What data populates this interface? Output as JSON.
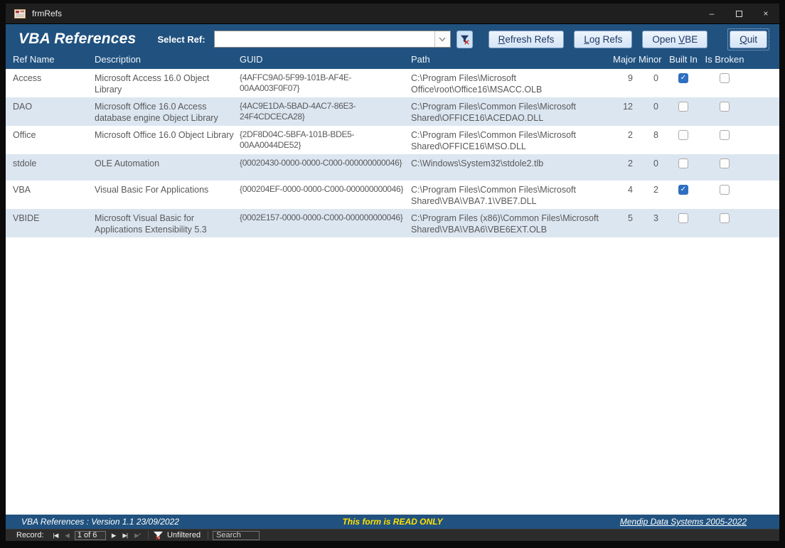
{
  "window": {
    "title": "frmRefs",
    "controls": {
      "minimize": "–",
      "close": "×"
    }
  },
  "header": {
    "title": "VBA References",
    "select_ref_label": "Select Ref:",
    "combo_value": "",
    "buttons": [
      {
        "name": "refresh-refs-button",
        "label_pre": "",
        "label_key": "R",
        "label_post": "efresh Refs",
        "is_default": false
      },
      {
        "name": "log-refs-button",
        "label_pre": "",
        "label_key": "L",
        "label_post": "og Refs",
        "is_default": false
      },
      {
        "name": "open-vbe-button",
        "label_pre": "Open ",
        "label_key": "V",
        "label_post": "BE",
        "is_default": false
      },
      {
        "name": "quit-button",
        "label_pre": "",
        "label_key": "Q",
        "label_post": "uit",
        "is_default": true
      }
    ]
  },
  "table": {
    "columns": [
      "Ref Name",
      "Description",
      "GUID",
      "Path",
      "Major",
      "Minor",
      "Built In",
      "Is Broken"
    ],
    "rows": [
      {
        "name": "Access",
        "description": "Microsoft Access 16.0 Object Library",
        "guid": "{4AFFC9A0-5F99-101B-AF4E-00AA003F0F07}",
        "path": "C:\\Program Files\\Microsoft Office\\root\\Office16\\MSACC.OLB",
        "major": "9",
        "minor": "0",
        "built_in": true,
        "is_broken": false
      },
      {
        "name": "DAO",
        "description": "Microsoft Office 16.0 Access database engine Object Library",
        "guid": "{4AC9E1DA-5BAD-4AC7-86E3-24F4CDCECA28}",
        "path": "C:\\Program Files\\Common Files\\Microsoft Shared\\OFFICE16\\ACEDAO.DLL",
        "major": "12",
        "minor": "0",
        "built_in": false,
        "is_broken": false
      },
      {
        "name": "Office",
        "description": "Microsoft Office 16.0 Object Library",
        "guid": "{2DF8D04C-5BFA-101B-BDE5-00AA0044DE52}",
        "path": "C:\\Program Files\\Common Files\\Microsoft Shared\\OFFICE16\\MSO.DLL",
        "major": "2",
        "minor": "8",
        "built_in": false,
        "is_broken": false
      },
      {
        "name": "stdole",
        "description": "OLE Automation",
        "guid": "{00020430-0000-0000-C000-000000000046}",
        "path": "C:\\Windows\\System32\\stdole2.tlb",
        "major": "2",
        "minor": "0",
        "built_in": false,
        "is_broken": false
      },
      {
        "name": "VBA",
        "description": "Visual Basic For Applications",
        "guid": "{000204EF-0000-0000-C000-000000000046}",
        "path": "C:\\Program Files\\Common Files\\Microsoft Shared\\VBA\\VBA7.1\\VBE7.DLL",
        "major": "4",
        "minor": "2",
        "built_in": true,
        "is_broken": false
      },
      {
        "name": "VBIDE",
        "description": "Microsoft Visual Basic for Applications Extensibility 5.3",
        "guid": "{0002E157-0000-0000-C000-000000000046}",
        "path": "C:\\Program Files (x86)\\Common Files\\Microsoft Shared\\VBA\\VBA6\\VBE6EXT.OLB",
        "major": "5",
        "minor": "3",
        "built_in": false,
        "is_broken": false
      }
    ]
  },
  "footer": {
    "version_text": "VBA References :  Version 1.1  23/09/2022",
    "readonly_text": "This form is READ ONLY",
    "credit_text": "Mendip Data Systems 2005-2022"
  },
  "record_nav": {
    "label": "Record:",
    "position": "1 of 6",
    "filter_state": "Unfiltered",
    "search_placeholder": "Search",
    "nav_glyphs": {
      "first": "|◀",
      "prev": "◀",
      "next": "▶",
      "last": "▶|",
      "new": "▶*"
    }
  },
  "icons": {
    "check_glyph": "✓"
  },
  "colors": {
    "header_blue": "#21527F",
    "alt_row_blue": "#DCE6F1",
    "checkbox_checked_blue": "#2E6FC0",
    "button_text_navy": "#1F3864",
    "readonly_yellow": "#FFE100",
    "cell_text_gray": "#595959"
  }
}
